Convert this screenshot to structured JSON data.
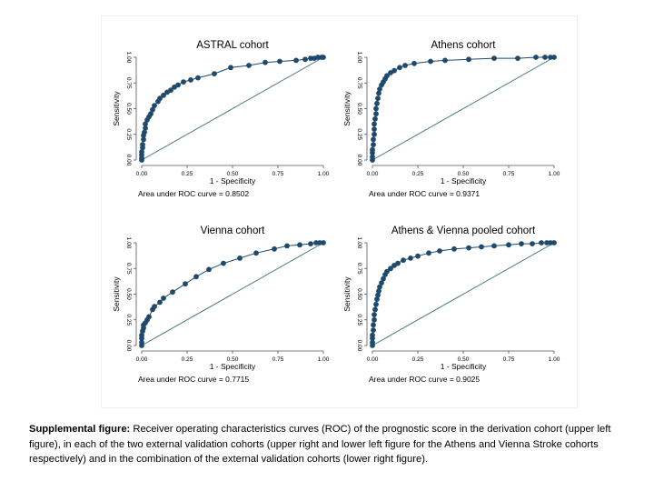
{
  "caption": {
    "label": "Supplemental figure:",
    "text": "Receiver operating characteristics curves (ROC) of the prognostic score in the derivation cohort (upper left figure), in each of the two external validation cohorts (upper right and lower left figure for the Athens and Vienna Stroke cohorts respectively) and in the combination of the external validation cohorts (lower right figure)."
  },
  "colors": {
    "curve": "#1e4a6e",
    "marker": "#1e4a6e",
    "reference": "#3a6f78",
    "axis": "#555555"
  },
  "chart_data": [
    {
      "type": "line",
      "title": "ASTRAL cohort",
      "xlabel": "1 - Specificity",
      "ylabel": "Sensitivity",
      "xlim": [
        0,
        1
      ],
      "ylim": [
        0,
        1
      ],
      "xticks": [
        "0.00",
        "0.25",
        "0.50",
        "0.75",
        "1.00"
      ],
      "yticks": [
        "0.00",
        "0.25",
        "0.50",
        "0.75",
        "1.00"
      ],
      "annotation": "Area under ROC curve = 0.8502",
      "reference_line": true,
      "x": [
        0,
        0,
        0,
        0,
        0.005,
        0.005,
        0.01,
        0.01,
        0.015,
        0.02,
        0.02,
        0.03,
        0.04,
        0.05,
        0.06,
        0.07,
        0.09,
        0.1,
        0.12,
        0.14,
        0.16,
        0.18,
        0.2,
        0.23,
        0.27,
        0.31,
        0.4,
        0.49,
        0.59,
        0.68,
        0.76,
        0.85,
        0.9,
        0.93,
        0.95,
        0.97,
        0.99,
        1
      ],
      "y": [
        0,
        0.02,
        0.05,
        0.08,
        0.12,
        0.15,
        0.2,
        0.24,
        0.27,
        0.31,
        0.35,
        0.39,
        0.42,
        0.45,
        0.49,
        0.53,
        0.57,
        0.6,
        0.63,
        0.66,
        0.68,
        0.71,
        0.73,
        0.76,
        0.78,
        0.8,
        0.84,
        0.9,
        0.92,
        0.95,
        0.96,
        0.97,
        0.98,
        0.99,
        0.99,
        1,
        1,
        1
      ]
    },
    {
      "type": "line",
      "title": "Athens cohort",
      "xlabel": "1 - Specificity",
      "ylabel": "Sensitivity",
      "xlim": [
        0,
        1
      ],
      "ylim": [
        0,
        1
      ],
      "xticks": [
        "0.00",
        "0.25",
        "0.50",
        "0.75",
        "1.00"
      ],
      "yticks": [
        "0.00",
        "0.25",
        "0.50",
        "0.75",
        "1.00"
      ],
      "annotation": "Area under ROC curve = 0.9371",
      "reference_line": true,
      "x": [
        0,
        0,
        0,
        0,
        0.005,
        0.005,
        0.01,
        0.01,
        0.01,
        0.015,
        0.02,
        0.02,
        0.025,
        0.03,
        0.035,
        0.04,
        0.05,
        0.06,
        0.07,
        0.08,
        0.1,
        0.12,
        0.15,
        0.18,
        0.23,
        0.32,
        0.4,
        0.53,
        0.67,
        0.8,
        0.9,
        0.95,
        0.98,
        1
      ],
      "y": [
        0,
        0.03,
        0.07,
        0.1,
        0.15,
        0.2,
        0.25,
        0.3,
        0.35,
        0.4,
        0.45,
        0.5,
        0.55,
        0.6,
        0.65,
        0.69,
        0.73,
        0.76,
        0.79,
        0.82,
        0.85,
        0.87,
        0.9,
        0.92,
        0.94,
        0.96,
        0.97,
        0.98,
        0.99,
        0.99,
        1,
        1,
        1,
        1
      ]
    },
    {
      "type": "line",
      "title": "Vienna cohort",
      "xlabel": "1 - Specificity",
      "ylabel": "Sensitivity",
      "xlim": [
        0,
        1
      ],
      "ylim": [
        0,
        1
      ],
      "xticks": [
        "0.00",
        "0.25",
        "0.50",
        "0.75",
        "1.00"
      ],
      "yticks": [
        "0.00",
        "0.25",
        "0.50",
        "0.75",
        "1.00"
      ],
      "annotation": "Area under ROC curve = 0.7715",
      "reference_line": true,
      "x": [
        0,
        0,
        0,
        0,
        0.005,
        0.01,
        0.01,
        0.02,
        0.03,
        0.04,
        0.06,
        0.07,
        0.1,
        0.12,
        0.17,
        0.24,
        0.3,
        0.37,
        0.45,
        0.54,
        0.63,
        0.73,
        0.8,
        0.87,
        0.93,
        0.96,
        0.98,
        1
      ],
      "y": [
        0,
        0.03,
        0.07,
        0.1,
        0.14,
        0.17,
        0.2,
        0.22,
        0.25,
        0.28,
        0.35,
        0.38,
        0.42,
        0.46,
        0.52,
        0.6,
        0.67,
        0.74,
        0.8,
        0.85,
        0.9,
        0.94,
        0.97,
        0.98,
        0.99,
        1,
        1,
        1
      ]
    },
    {
      "type": "line",
      "title": "Athens & Vienna pooled cohort",
      "xlabel": "1 - Specificity",
      "ylabel": "Sensitivity",
      "xlim": [
        0,
        1
      ],
      "ylim": [
        0,
        1
      ],
      "xticks": [
        "0.00",
        "0.25",
        "0.50",
        "0.75",
        "1.00"
      ],
      "yticks": [
        "0.00",
        "0.25",
        "0.50",
        "0.75",
        "1.00"
      ],
      "annotation": "Area under ROC curve = 0.9025",
      "reference_line": true,
      "x": [
        0,
        0,
        0,
        0,
        0.005,
        0.005,
        0.01,
        0.01,
        0.015,
        0.02,
        0.025,
        0.03,
        0.035,
        0.04,
        0.05,
        0.06,
        0.07,
        0.08,
        0.1,
        0.12,
        0.14,
        0.17,
        0.21,
        0.25,
        0.31,
        0.37,
        0.45,
        0.53,
        0.6,
        0.67,
        0.75,
        0.82,
        0.88,
        0.93,
        0.96,
        0.98,
        1
      ],
      "y": [
        0,
        0.03,
        0.07,
        0.1,
        0.15,
        0.2,
        0.25,
        0.3,
        0.35,
        0.4,
        0.45,
        0.49,
        0.53,
        0.57,
        0.61,
        0.65,
        0.69,
        0.72,
        0.75,
        0.78,
        0.8,
        0.83,
        0.85,
        0.87,
        0.9,
        0.92,
        0.94,
        0.95,
        0.96,
        0.97,
        0.98,
        0.99,
        0.99,
        1,
        1,
        1,
        1
      ]
    }
  ]
}
